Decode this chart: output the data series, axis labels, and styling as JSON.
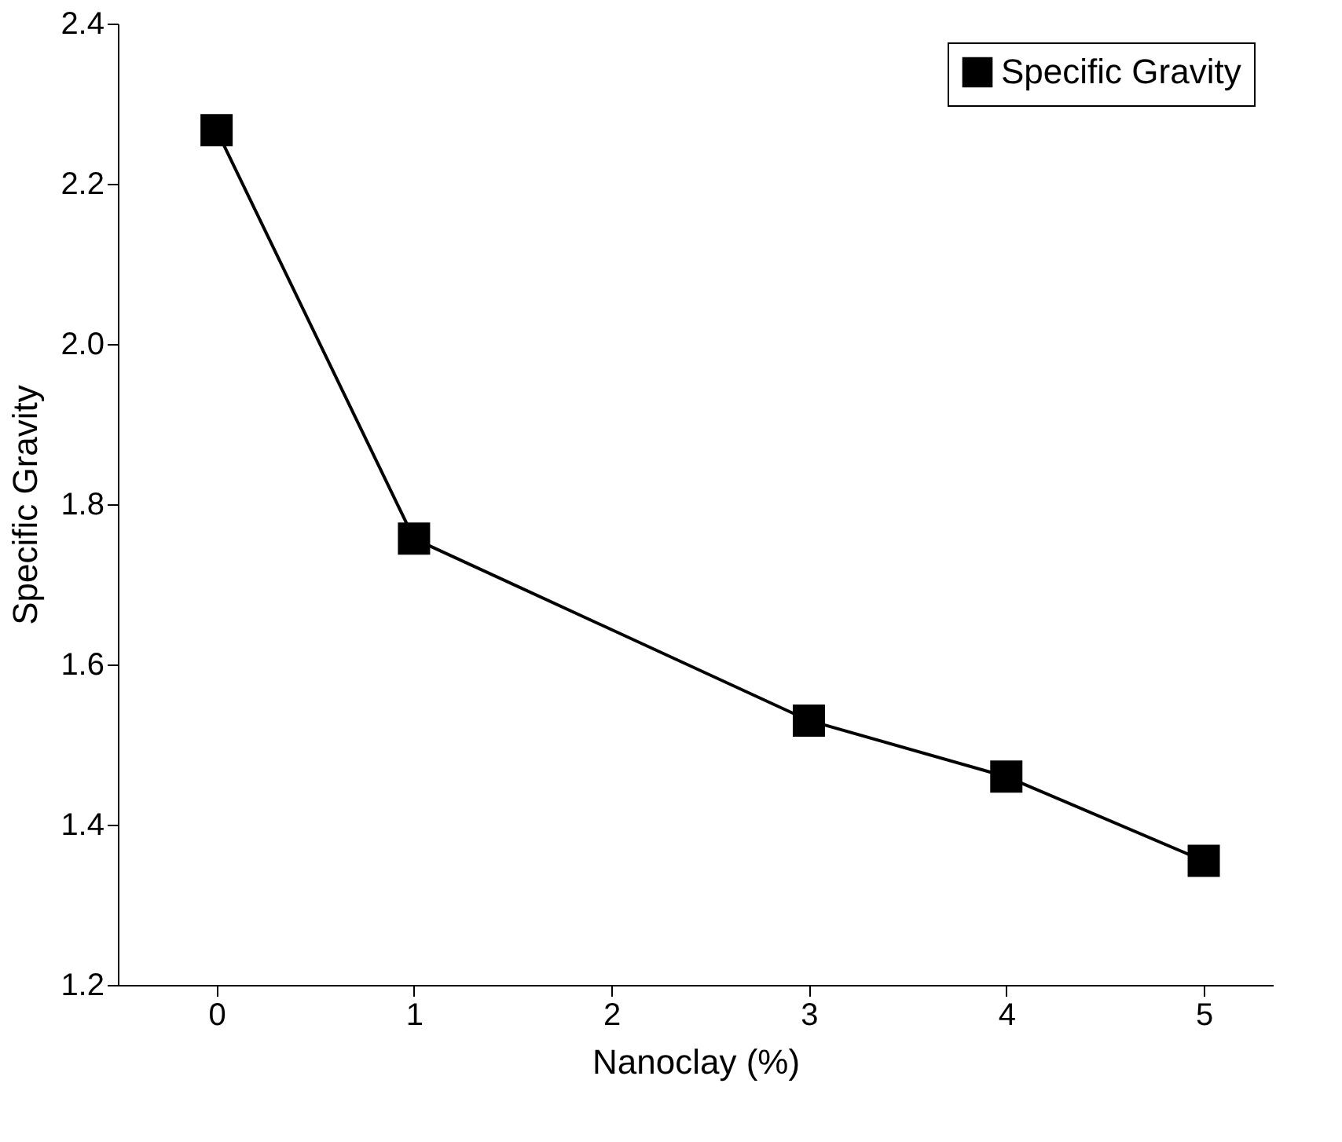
{
  "chart_data": {
    "type": "line",
    "xlabel": "Nanoclay (%)",
    "ylabel": "Specific Gravity",
    "x": [
      0,
      1,
      3,
      4,
      5
    ],
    "series": [
      {
        "name": "Specific Gravity",
        "color": "#000000",
        "values": [
          2.267,
          1.757,
          1.53,
          1.46,
          1.355
        ]
      }
    ],
    "xlim": [
      -0.5,
      5.35
    ],
    "xticks": [
      0,
      1,
      2,
      3,
      4,
      5
    ],
    "ylim": [
      1.2,
      2.4
    ],
    "yticks": [
      1.2,
      1.4,
      1.6,
      1.8,
      {
        "value": 2.0,
        "label": "2.0"
      },
      2.2,
      2.4
    ],
    "grid": false,
    "legend": "top right",
    "marker": "square",
    "line_style": "solid"
  }
}
